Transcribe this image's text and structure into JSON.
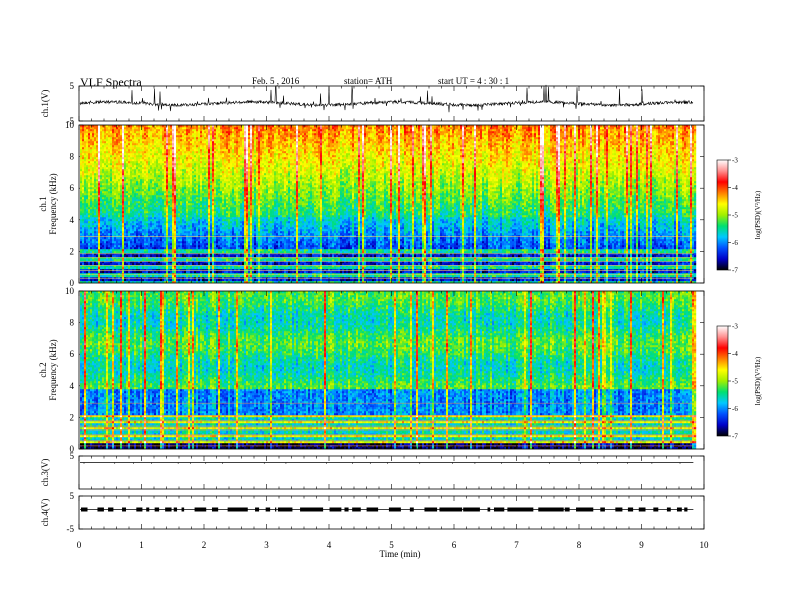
{
  "header": {
    "title": "VLF  Spectra",
    "date": "Feb. 5  , 2016",
    "station": "station= ATH",
    "start": "start  UT  =   4  : 30 : 1"
  },
  "chart_data": [
    {
      "type": "line",
      "panel": "ch1-waveform",
      "ylabel": "ch.1(V)",
      "ylim": [
        -5,
        5
      ],
      "yticks": [
        "5",
        "-5"
      ],
      "baseline": 0
    },
    {
      "type": "heatmap",
      "panel": "ch1-spectrogram",
      "ylabel_top": "ch.1",
      "ylabel": "Frequency  (kHz)",
      "ylim": [
        0,
        10
      ],
      "yticks": [
        "0",
        "2",
        "4",
        "6",
        "8",
        "10"
      ],
      "colorbar": {
        "label": "log(PSD)(V²/Hz)",
        "range": [
          -7,
          -3
        ],
        "ticks": [
          "-3",
          "-4",
          "-5",
          "-6",
          "-7"
        ],
        "colors": [
          "#000000",
          "#0000c8",
          "#0050ff",
          "#00c8ff",
          "#00e070",
          "#a0f000",
          "#ffff00",
          "#ff8000",
          "#ff0000",
          "#ff9090",
          "#ffffff"
        ]
      }
    },
    {
      "type": "heatmap",
      "panel": "ch2-spectrogram",
      "ylabel_top": "ch.2",
      "ylabel": "Frequency  (kHz)",
      "ylim": [
        0,
        10
      ],
      "yticks": [
        "0",
        "2",
        "4",
        "6",
        "8",
        "10"
      ],
      "colorbar": {
        "label": "log(PSD)(V²/Hz)",
        "range": [
          -7,
          -3
        ],
        "ticks": [
          "-3",
          "-4",
          "-5",
          "-6",
          "-7"
        ],
        "colors": [
          "#000000",
          "#0000c8",
          "#0050ff",
          "#00c8ff",
          "#00e070",
          "#a0f000",
          "#ffff00",
          "#ff8000",
          "#ff0000",
          "#ff9090",
          "#ffffff"
        ]
      }
    },
    {
      "type": "line",
      "panel": "ch3-waveform",
      "ylabel": "ch.3(V)",
      "ylim": [
        -5,
        5
      ],
      "yticks": [
        "5"
      ],
      "baseline": 0
    },
    {
      "type": "line",
      "panel": "ch4-waveform",
      "ylabel": "ch.4(V)",
      "ylim": [
        -5,
        5
      ],
      "yticks": [
        "5",
        "-5"
      ],
      "baseline": 0
    }
  ],
  "xaxis": {
    "label": "Time  (min)",
    "range": [
      0,
      10
    ],
    "data_end": 9.83,
    "ticks": [
      "0",
      "1",
      "2",
      "3",
      "4",
      "5",
      "6",
      "7",
      "8",
      "9",
      "10"
    ]
  }
}
